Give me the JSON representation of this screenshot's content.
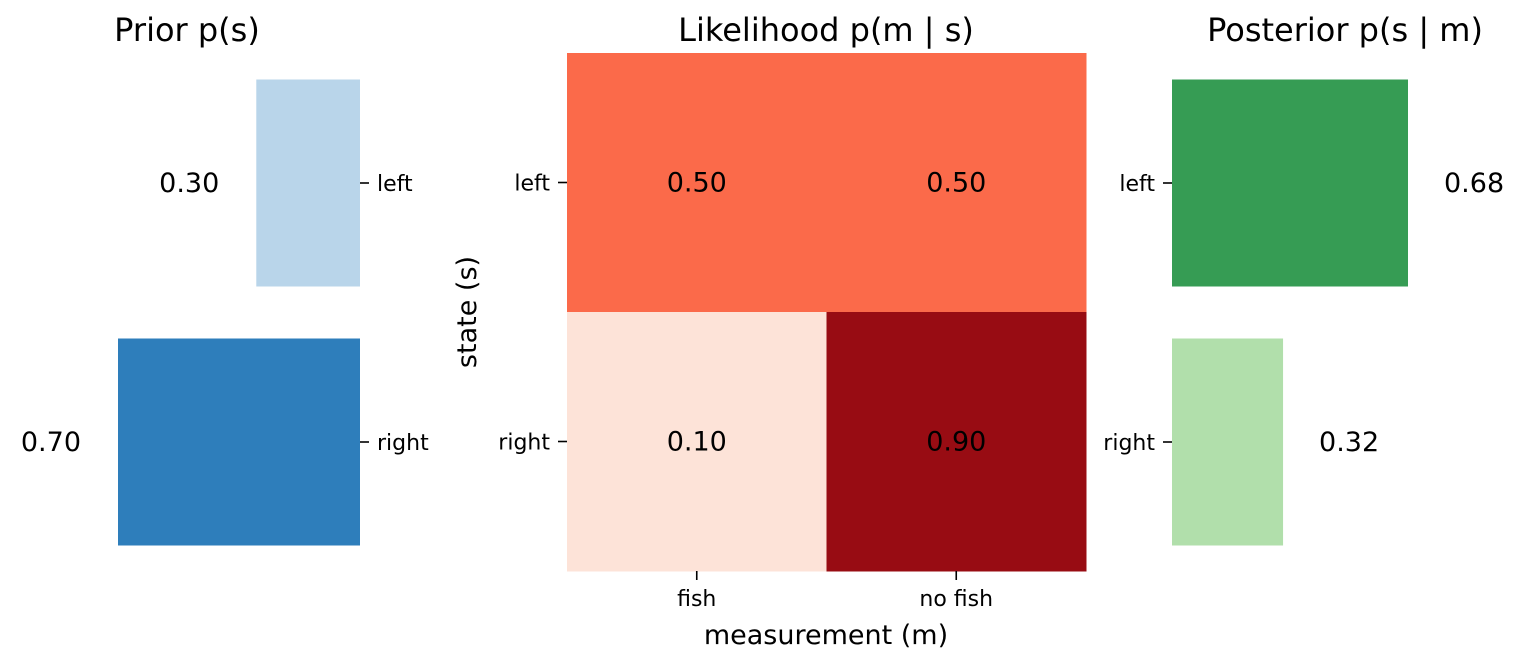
{
  "chart_data": [
    {
      "type": "bar",
      "orientation": "horizontal",
      "title": "Prior p(s)",
      "categories": [
        "left",
        "right"
      ],
      "values": [
        0.3,
        0.7
      ],
      "value_labels": [
        "0.30",
        "0.70"
      ],
      "colors": [
        "#b9d5ea",
        "#2e7ebb"
      ],
      "xlim": [
        0,
        0.7
      ],
      "x_direction": "reversed",
      "y_ticks_side": "right",
      "value_label_side": "left",
      "grid": false
    },
    {
      "type": "heatmap",
      "title": "Likelihood p(m | s)",
      "rows": [
        "left",
        "right"
      ],
      "columns": [
        "fish",
        "no fish"
      ],
      "values": [
        [
          0.5,
          0.5
        ],
        [
          0.1,
          0.9
        ]
      ],
      "value_labels": [
        [
          "0.50",
          "0.50"
        ],
        [
          "0.10",
          "0.90"
        ]
      ],
      "colors": [
        [
          "#fb6a4a",
          "#fb6a4a"
        ],
        [
          "#fde3d8",
          "#980c13"
        ]
      ],
      "xlabel": "measurement (m)",
      "ylabel": "state (s)",
      "colorbar": false
    },
    {
      "type": "bar",
      "orientation": "horizontal",
      "title": "Posterior p(s | m)",
      "categories": [
        "left",
        "right"
      ],
      "values": [
        0.68,
        0.32
      ],
      "value_labels": [
        "0.68",
        "0.32"
      ],
      "colors": [
        "#369c54",
        "#b1dfab"
      ],
      "xlim": [
        0,
        0.68
      ],
      "x_direction": "normal",
      "y_ticks_side": "left",
      "value_label_side": "right",
      "grid": false
    }
  ]
}
